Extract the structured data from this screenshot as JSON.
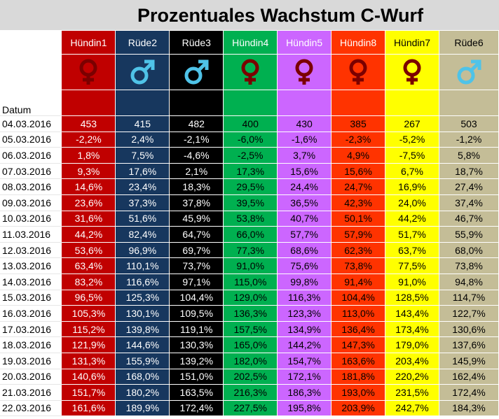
{
  "title": "Prozentuales Wachstum C-Wurf",
  "date_header": "Datum",
  "columns": [
    {
      "name": "Hündin1",
      "sex": "female",
      "symbol_icon": "female-symbol-icon",
      "bg": "#c00000",
      "fg": "#ffffff",
      "symbol_color": "#7b0000"
    },
    {
      "name": "Rüde2",
      "sex": "male",
      "symbol_icon": "male-symbol-icon",
      "bg": "#17375e",
      "fg": "#ffffff",
      "symbol_color": "#4fc3e8"
    },
    {
      "name": "Rüde3",
      "sex": "male",
      "symbol_icon": "male-symbol-icon",
      "bg": "#000000",
      "fg": "#ffffff",
      "symbol_color": "#4fc3e8"
    },
    {
      "name": "Hündin4",
      "sex": "female",
      "symbol_icon": "female-symbol-icon",
      "bg": "#00b050",
      "fg": "#000000",
      "symbol_color": "#7b0000",
      "header_fg": "#ffffff"
    },
    {
      "name": "Hündin5",
      "sex": "female",
      "symbol_icon": "female-symbol-icon",
      "bg": "#cc66ff",
      "fg": "#000000",
      "symbol_color": "#7b0000",
      "header_fg": "#ffffff"
    },
    {
      "name": "Hündin8",
      "sex": "female",
      "symbol_icon": "female-symbol-icon",
      "bg": "#ff3300",
      "fg": "#000000",
      "symbol_color": "#7b0000",
      "header_fg": "#ffffff"
    },
    {
      "name": "Hündin7",
      "sex": "female",
      "symbol_icon": "female-symbol-icon",
      "bg": "#ffff00",
      "fg": "#000000",
      "symbol_color": "#7b0000",
      "header_fg": "#000000"
    },
    {
      "name": "Rüde6",
      "sex": "male",
      "symbol_icon": "male-symbol-icon",
      "bg": "#c4bd97",
      "fg": "#000000",
      "symbol_color": "#4fc3e8",
      "header_fg": "#000000"
    }
  ],
  "rows": [
    {
      "date": "04.03.2016",
      "values": [
        "453",
        "415",
        "482",
        "400",
        "430",
        "385",
        "267",
        "503"
      ]
    },
    {
      "date": "05.03.2016",
      "values": [
        "-2,2%",
        "2,4%",
        "-2,1%",
        "-6,0%",
        "-1,6%",
        "-2,3%",
        "-5,2%",
        "-1,2%"
      ]
    },
    {
      "date": "06.03.2016",
      "values": [
        "1,8%",
        "7,5%",
        "-4,6%",
        "-2,5%",
        "3,7%",
        "4,9%",
        "-7,5%",
        "5,8%"
      ]
    },
    {
      "date": "07.03.2016",
      "values": [
        "9,3%",
        "17,6%",
        "2,1%",
        "17,3%",
        "15,6%",
        "15,6%",
        "6,7%",
        "18,7%"
      ]
    },
    {
      "date": "08.03.2016",
      "values": [
        "14,6%",
        "23,4%",
        "18,3%",
        "29,5%",
        "24,4%",
        "24,7%",
        "16,9%",
        "27,4%"
      ]
    },
    {
      "date": "09.03.2016",
      "values": [
        "23,6%",
        "37,3%",
        "37,8%",
        "39,5%",
        "36,5%",
        "42,3%",
        "24,0%",
        "37,4%"
      ]
    },
    {
      "date": "10.03.2016",
      "values": [
        "31,6%",
        "51,6%",
        "45,9%",
        "53,8%",
        "40,7%",
        "50,1%",
        "44,2%",
        "46,7%"
      ]
    },
    {
      "date": "11.03.2016",
      "values": [
        "44,2%",
        "82,4%",
        "64,7%",
        "66,0%",
        "57,7%",
        "57,9%",
        "51,7%",
        "55,9%"
      ]
    },
    {
      "date": "12.03.2016",
      "values": [
        "53,6%",
        "96,9%",
        "69,7%",
        "77,3%",
        "68,6%",
        "62,3%",
        "63,7%",
        "68,0%"
      ]
    },
    {
      "date": "13.03.2016",
      "values": [
        "63,4%",
        "110,1%",
        "73,7%",
        "91,0%",
        "75,6%",
        "73,8%",
        "77,5%",
        "73,8%"
      ]
    },
    {
      "date": "14.03.2016",
      "values": [
        "83,2%",
        "116,6%",
        "97,1%",
        "115,0%",
        "99,8%",
        "91,4%",
        "91,0%",
        "94,8%"
      ]
    },
    {
      "date": "15.03.2016",
      "values": [
        "96,5%",
        "125,3%",
        "104,4%",
        "129,0%",
        "116,3%",
        "104,4%",
        "128,5%",
        "114,7%"
      ]
    },
    {
      "date": "16.03.2016",
      "values": [
        "105,3%",
        "130,1%",
        "109,5%",
        "136,3%",
        "123,3%",
        "113,0%",
        "143,4%",
        "122,7%"
      ]
    },
    {
      "date": "17.03.2016",
      "values": [
        "115,2%",
        "139,8%",
        "119,1%",
        "157,5%",
        "134,9%",
        "136,4%",
        "173,4%",
        "130,6%"
      ]
    },
    {
      "date": "18.03.2016",
      "values": [
        "121,9%",
        "144,6%",
        "130,3%",
        "165,0%",
        "144,2%",
        "147,3%",
        "179,0%",
        "137,6%"
      ]
    },
    {
      "date": "19.03.2016",
      "values": [
        "131,3%",
        "155,9%",
        "139,2%",
        "182,0%",
        "154,7%",
        "163,6%",
        "203,4%",
        "145,9%"
      ]
    },
    {
      "date": "20.03.2016",
      "values": [
        "140,6%",
        "168,0%",
        "151,0%",
        "202,5%",
        "172,1%",
        "181,8%",
        "220,2%",
        "162,4%"
      ]
    },
    {
      "date": "21.03.2016",
      "values": [
        "151,7%",
        "180,2%",
        "163,5%",
        "216,3%",
        "186,3%",
        "193,0%",
        "231,5%",
        "172,4%"
      ]
    },
    {
      "date": "22.03.2016",
      "values": [
        "161,6%",
        "189,9%",
        "172,4%",
        "227,5%",
        "195,8%",
        "203,9%",
        "242,7%",
        "184,3%"
      ]
    }
  ]
}
